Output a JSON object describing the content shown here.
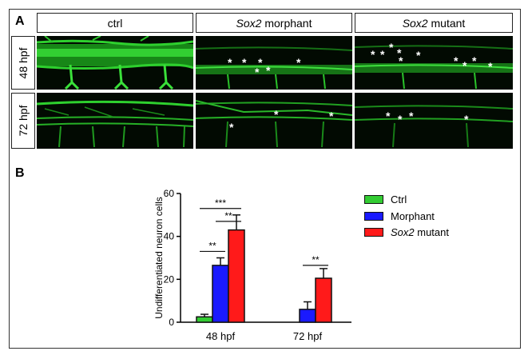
{
  "panel_a": {
    "letter": "A",
    "columns": [
      {
        "label": "ctrl",
        "italic": ""
      },
      {
        "label": " morphant",
        "italic": "Sox2"
      },
      {
        "label": " mutant",
        "italic": "Sox2"
      }
    ],
    "rows": [
      "48 hpf",
      "72 hpf"
    ],
    "star_glyph": "*"
  },
  "panel_b": {
    "letter": "B",
    "legend": [
      {
        "label": "Ctrl",
        "italic": "",
        "color": "#33cc33"
      },
      {
        "label": "Morphant",
        "italic": "",
        "color": "#1a1aff"
      },
      {
        "label": " mutant",
        "italic": "Sox2",
        "color": "#ff1a1a"
      }
    ],
    "significance": [
      "**",
      "***",
      "**",
      "**"
    ]
  },
  "chart_data": {
    "type": "bar",
    "categories": [
      "48 hpf",
      "72 hpf"
    ],
    "ylabel": "Undifferentiated neuron cells",
    "ylim": [
      0,
      60
    ],
    "yticks": [
      0,
      20,
      40,
      60
    ],
    "series": [
      {
        "name": "Ctrl",
        "color": "#33cc33",
        "values": [
          2.5,
          0
        ],
        "errors": [
          1.2,
          0
        ]
      },
      {
        "name": "Morphant",
        "color": "#1a1aff",
        "values": [
          26.5,
          6
        ],
        "errors": [
          3.5,
          3.5
        ]
      },
      {
        "name": "Sox2 mutant",
        "color": "#ff1a1a",
        "values": [
          43,
          20.5
        ],
        "errors": [
          7,
          4.5
        ]
      }
    ]
  }
}
